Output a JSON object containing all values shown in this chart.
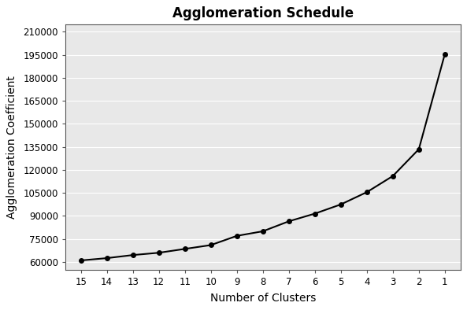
{
  "title": "Agglomeration Schedule",
  "xlabel": "Number of Clusters",
  "ylabel": "Agglomeration Coefficient",
  "x": [
    15,
    14,
    13,
    12,
    11,
    10,
    9,
    8,
    7,
    6,
    5,
    4,
    3,
    2,
    1
  ],
  "y": [
    61000,
    62500,
    64500,
    66000,
    68500,
    71000,
    77000,
    80000,
    86500,
    91500,
    97500,
    105500,
    116000,
    133500,
    195500
  ],
  "line_color": "#000000",
  "marker": "o",
  "marker_size": 4,
  "line_width": 1.5,
  "yticks": [
    60000,
    75000,
    90000,
    105000,
    120000,
    135000,
    150000,
    165000,
    180000,
    195000,
    210000
  ],
  "xticks": [
    15,
    14,
    13,
    12,
    11,
    10,
    9,
    8,
    7,
    6,
    5,
    4,
    3,
    2,
    1
  ],
  "ylim": [
    55000,
    215000
  ],
  "xlim": [
    15.6,
    0.4
  ],
  "plot_bg_color": "#e8e8e8",
  "fig_bg_color": "#ffffff",
  "grid_color": "#ffffff",
  "title_fontsize": 12,
  "label_fontsize": 10,
  "tick_fontsize": 8.5
}
